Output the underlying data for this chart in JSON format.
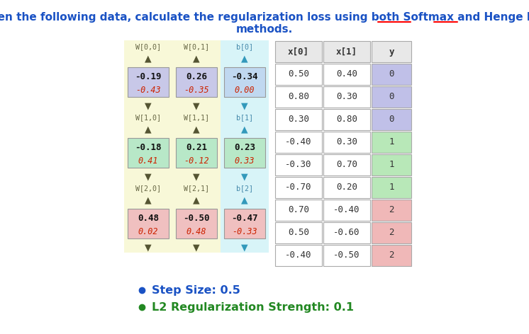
{
  "title_color": "#1a52c4",
  "title_fontsize": 11.0,
  "title_line1": "Given the following data, calculate the regularization loss using both Softmax and Henge loss",
  "title_line2": "methods.",
  "W_labels": [
    [
      "W[0,0]",
      "W[0,1]",
      "b[0]"
    ],
    [
      "W[1,0]",
      "W[1,1]",
      "b[1]"
    ],
    [
      "W[2,0]",
      "W[2,1]",
      "b[2]"
    ]
  ],
  "W_label_colors": [
    "#666644",
    "#666644",
    "#4488aa"
  ],
  "W_data": [
    [
      "-0.19",
      "0.26",
      "-0.34"
    ],
    [
      "-0.18",
      "0.21",
      "0.23"
    ],
    [
      "0.48",
      "-0.50",
      "-0.47"
    ]
  ],
  "W_grad": [
    [
      "-0.43",
      "-0.35",
      "0.00"
    ],
    [
      "0.41",
      "-0.12",
      "0.33"
    ],
    [
      "0.02",
      "0.48",
      "-0.33"
    ]
  ],
  "W_cell_bg": [
    [
      "#c8c8e8",
      "#c8c8e8",
      "#c0d8f0"
    ],
    [
      "#b8e8c8",
      "#b8e8c8",
      "#b8e8c8"
    ],
    [
      "#f0c0c0",
      "#f0c0c0",
      "#f0c0c0"
    ]
  ],
  "col_bg": [
    "#f8f8d8",
    "#f8f8d8",
    "#d8f4f8"
  ],
  "x_headers": [
    "x[0]",
    "x[1]",
    "y"
  ],
  "x_data": [
    [
      "0.50",
      "0.40",
      "0"
    ],
    [
      "0.80",
      "0.30",
      "0"
    ],
    [
      "0.30",
      "0.80",
      "0"
    ],
    [
      "-0.40",
      "0.30",
      "1"
    ],
    [
      "-0.30",
      "0.70",
      "1"
    ],
    [
      "-0.70",
      "0.20",
      "1"
    ],
    [
      "0.70",
      "-0.40",
      "2"
    ],
    [
      "0.50",
      "-0.60",
      "2"
    ],
    [
      "-0.40",
      "-0.50",
      "2"
    ]
  ],
  "y_cell_colors": {
    "0": "#c0c0e8",
    "1": "#b8e8b8",
    "2": "#f0b8b8"
  },
  "bullet_color_step": "#1a52c4",
  "bullet_color_l2": "#228822",
  "bullet_text_step": "Step Size: 0.5",
  "bullet_text_l2": "L2 Regularization Strength: 0.1",
  "bullet_fontsize": 11.5
}
